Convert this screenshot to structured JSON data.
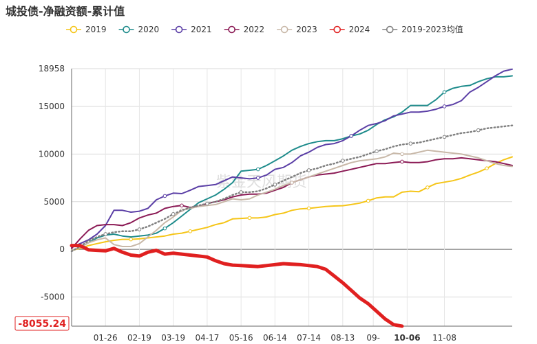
{
  "chart_data": {
    "type": "line",
    "title": "城投债-净融资额-累计值",
    "watermark": "紫金天风期货",
    "ylim": [
      -8055.24,
      18958
    ],
    "y_ticks": [
      {
        "value": 18958,
        "label": "18958"
      },
      {
        "value": 15000,
        "label": "15000"
      },
      {
        "value": 10000,
        "label": "10000"
      },
      {
        "value": 5000,
        "label": "5000"
      },
      {
        "value": 0,
        "label": "0"
      },
      {
        "value": -5000,
        "label": "-5000"
      }
    ],
    "y_min_label": "-8055.24",
    "x_count": 53,
    "x_ticks": [
      {
        "label": "01-26",
        "x": 4,
        "highlight": false
      },
      {
        "label": "02-19",
        "x": 8,
        "highlight": false
      },
      {
        "label": "03-19",
        "x": 12,
        "highlight": false
      },
      {
        "label": "04-17",
        "x": 16,
        "highlight": false
      },
      {
        "label": "05-16",
        "x": 20,
        "highlight": false
      },
      {
        "label": "06-14",
        "x": 24,
        "highlight": false
      },
      {
        "label": "07-14",
        "x": 28,
        "highlight": false
      },
      {
        "label": "08-13",
        "x": 32,
        "highlight": false
      },
      {
        "label": "09-",
        "x": 35.6,
        "highlight": false
      },
      {
        "label": "10-06",
        "x": 39.6,
        "highlight": true
      },
      {
        "label": "11-08",
        "x": 44,
        "highlight": false
      }
    ],
    "series": [
      {
        "name": "2019",
        "color": "#f5c518",
        "style": "solid",
        "width": 2,
        "marker_every": 7,
        "values": [
          -100,
          100,
          400,
          600,
          800,
          950,
          1050,
          1050,
          1100,
          1200,
          1300,
          1400,
          1600,
          1700,
          1900,
          2100,
          2300,
          2600,
          2800,
          3200,
          3250,
          3300,
          3300,
          3400,
          3650,
          3800,
          4100,
          4250,
          4300,
          4400,
          4500,
          4550,
          4580,
          4700,
          4850,
          5100,
          5400,
          5500,
          5500,
          6000,
          6100,
          6050,
          6500,
          6900,
          7050,
          7200,
          7450,
          7800,
          8100,
          8500,
          9000,
          9400,
          9700
        ]
      },
      {
        "name": "2020",
        "color": "#1f8c8c",
        "style": "solid",
        "width": 2,
        "marker_every": 11,
        "values": [
          -100,
          200,
          700,
          1200,
          1500,
          1600,
          1400,
          1300,
          1400,
          1500,
          1700,
          2200,
          2800,
          3500,
          4200,
          4900,
          5300,
          5700,
          6300,
          7000,
          8200,
          8300,
          8400,
          8800,
          9300,
          9800,
          10400,
          10800,
          11100,
          11300,
          11400,
          11400,
          11600,
          11900,
          12100,
          12500,
          13100,
          13600,
          13900,
          14400,
          15100,
          15100,
          15100,
          15700,
          16500,
          16900,
          17100,
          17200,
          17600,
          17900,
          18100,
          18100,
          18200
        ]
      },
      {
        "name": "2021",
        "color": "#5b3fa6",
        "style": "solid",
        "width": 2,
        "marker_every": 11,
        "values": [
          200,
          600,
          1000,
          1600,
          2500,
          4100,
          4100,
          3900,
          4000,
          4300,
          5200,
          5600,
          5900,
          5850,
          6200,
          6600,
          6700,
          6800,
          7200,
          7600,
          7500,
          7400,
          7500,
          7800,
          8400,
          8600,
          9100,
          9800,
          10200,
          10700,
          11000,
          11100,
          11400,
          11900,
          12500,
          13000,
          13200,
          13500,
          14000,
          14200,
          14400,
          14400,
          14500,
          14700,
          15000,
          15200,
          15600,
          16500,
          17000,
          17600,
          18200,
          18700,
          18900
        ]
      },
      {
        "name": "2022",
        "color": "#8b1a55",
        "style": "solid",
        "width": 2,
        "marker_every": 13,
        "values": [
          100,
          1100,
          2000,
          2500,
          2600,
          2600,
          2500,
          2800,
          3300,
          3600,
          3800,
          4300,
          4500,
          4600,
          4400,
          4500,
          4800,
          5000,
          5200,
          5500,
          5700,
          5800,
          5800,
          5900,
          6200,
          6500,
          7000,
          7300,
          7600,
          7800,
          7900,
          8000,
          8200,
          8400,
          8600,
          8800,
          9000,
          9000,
          9100,
          9200,
          9100,
          9100,
          9200,
          9400,
          9500,
          9500,
          9600,
          9500,
          9400,
          9300,
          9200,
          9000,
          8800
        ]
      },
      {
        "name": "2023",
        "color": "#c8b8a8",
        "style": "solid",
        "width": 2,
        "marker_every": 13,
        "values": [
          -100,
          200,
          700,
          1000,
          1200,
          500,
          300,
          300,
          600,
          1300,
          2000,
          2800,
          3400,
          4100,
          4300,
          4500,
          4600,
          4700,
          5000,
          5300,
          5200,
          5300,
          5700,
          6000,
          6300,
          6700,
          7000,
          7300,
          7600,
          7900,
          8200,
          8500,
          8800,
          9100,
          9300,
          9400,
          9500,
          9700,
          10100,
          10000,
          10000,
          10200,
          10400,
          10300,
          10200,
          10100,
          10000,
          9800,
          9600,
          9300,
          9000,
          8800,
          8700
        ]
      },
      {
        "name": "2024",
        "color": "#e02020",
        "style": "solid",
        "width": 5,
        "marker_every": 0,
        "values": [
          400,
          400,
          -50,
          -100,
          -150,
          100,
          -300,
          -600,
          -700,
          -300,
          -100,
          -500,
          -400,
          -500,
          -600,
          -700,
          -800,
          -1200,
          -1500,
          -1650,
          -1700,
          -1750,
          -1800,
          -1700,
          -1600,
          -1500,
          -1550,
          -1600,
          -1700,
          -1800,
          -2100,
          -2800,
          -3500,
          -4300,
          -5100,
          -5700,
          -6500,
          -7300,
          -7900,
          -8055.24
        ]
      },
      {
        "name": "2019-2023均值",
        "color": "#808080",
        "style": "dotted",
        "width": 2.5,
        "marker_every": 4,
        "values": [
          -200,
          300,
          900,
          1300,
          1600,
          1800,
          1900,
          1900,
          2100,
          2400,
          2800,
          3200,
          3700,
          4100,
          4400,
          4600,
          4800,
          5000,
          5300,
          5700,
          6000,
          6000,
          6100,
          6400,
          6800,
          7200,
          7600,
          8000,
          8300,
          8500,
          8800,
          9000,
          9300,
          9500,
          9700,
          10000,
          10300,
          10500,
          10800,
          11000,
          11100,
          11200,
          11400,
          11600,
          11800,
          12000,
          12200,
          12300,
          12500,
          12700,
          12800,
          12900,
          13000
        ]
      }
    ]
  }
}
